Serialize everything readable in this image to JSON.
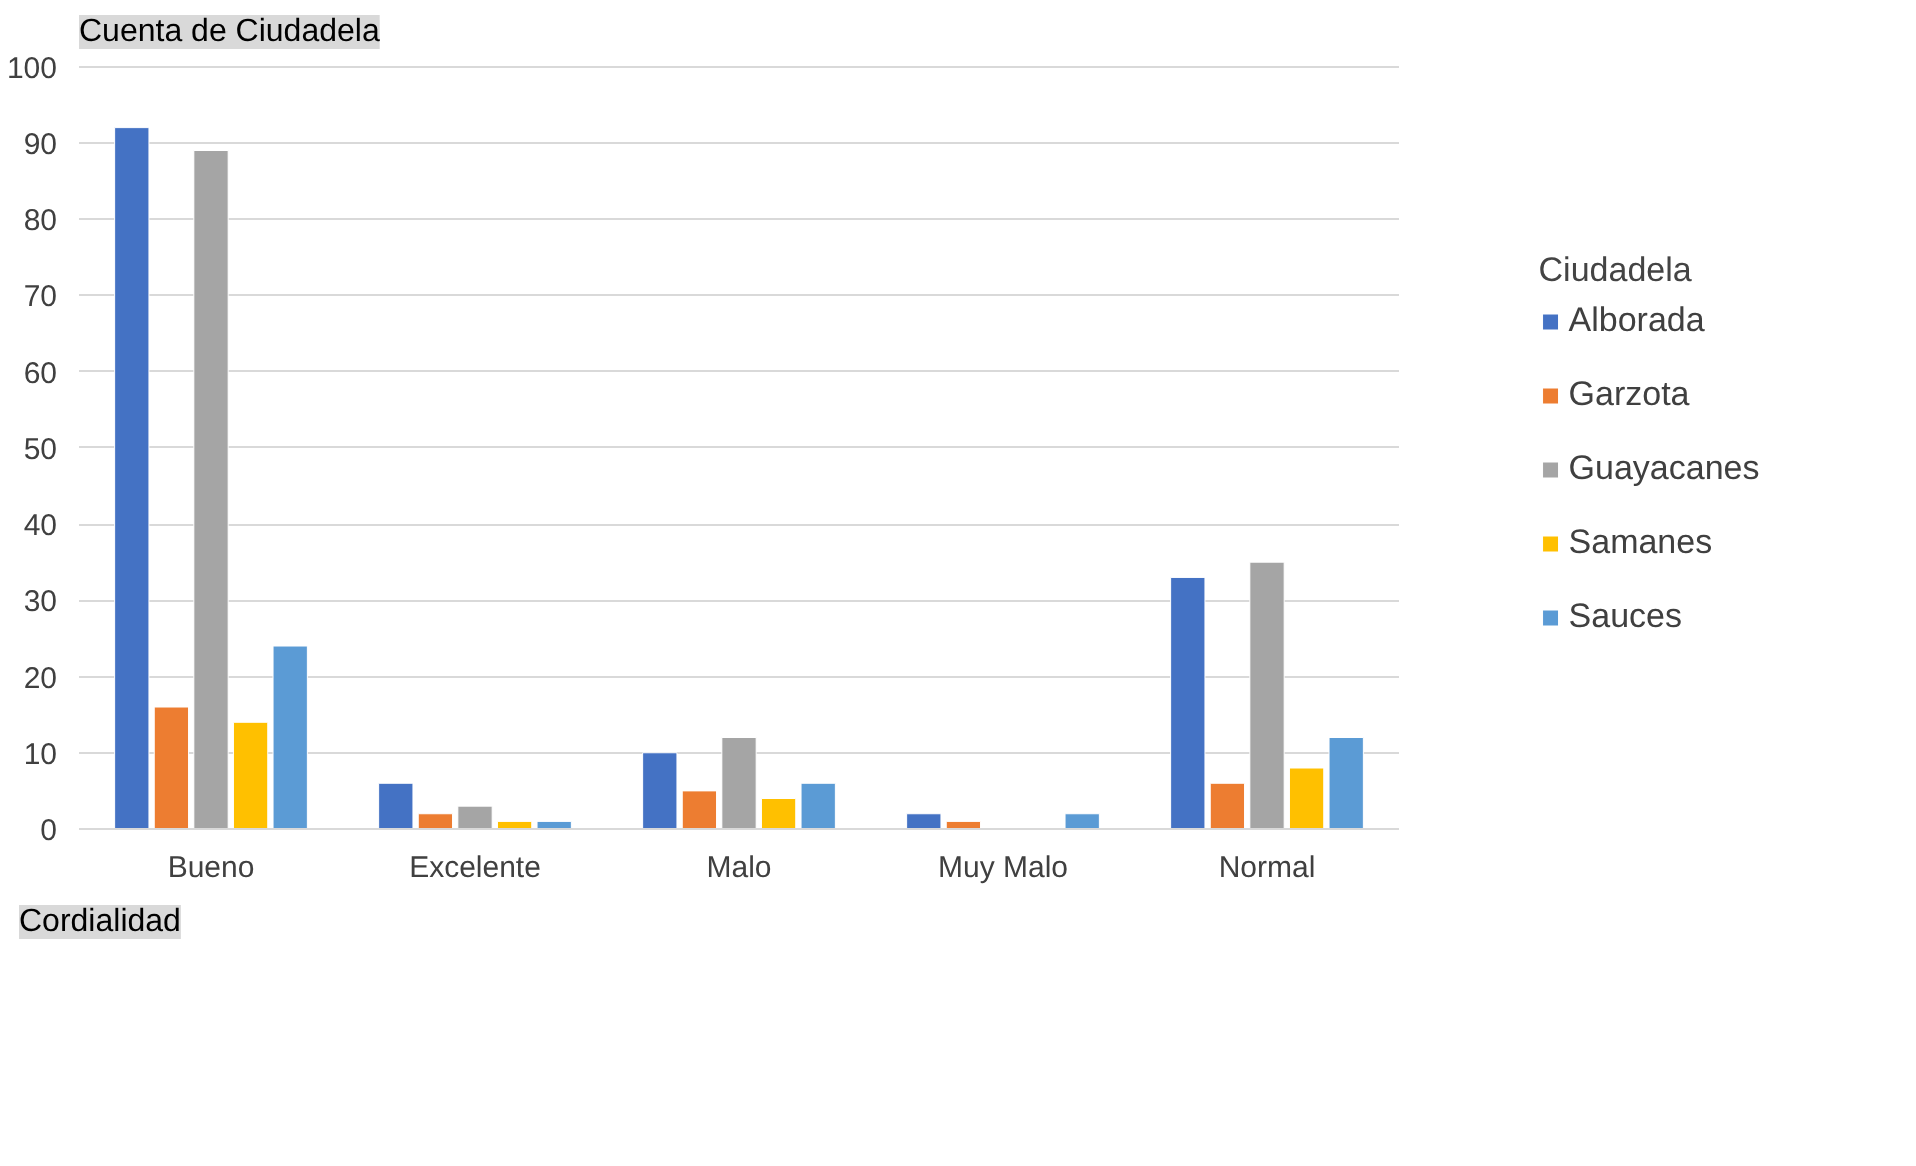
{
  "chart_data": {
    "type": "bar",
    "title": "Cuenta de Ciudadela",
    "xlabel": "Cordialidad",
    "legend_title": "Ciudadela",
    "categories": [
      "Bueno",
      "Excelente",
      "Malo",
      "Muy Malo",
      "Normal"
    ],
    "series": [
      {
        "name": "Alborada",
        "color": "#4472c4",
        "values": [
          92,
          6,
          10,
          2,
          33
        ]
      },
      {
        "name": "Garzota",
        "color": "#ed7d31",
        "values": [
          16,
          2,
          5,
          1,
          6
        ]
      },
      {
        "name": "Guayacanes",
        "color": "#a5a5a5",
        "values": [
          89,
          3,
          12,
          null,
          35
        ]
      },
      {
        "name": "Samanes",
        "color": "#ffc000",
        "values": [
          14,
          1,
          4,
          null,
          8
        ]
      },
      {
        "name": "Sauces",
        "color": "#5b9bd5",
        "values": [
          24,
          1,
          6,
          2,
          12
        ]
      }
    ],
    "ylim": [
      0,
      100
    ],
    "yticks": [
      0,
      10,
      20,
      30,
      40,
      50,
      60,
      70,
      80,
      90,
      100
    ],
    "grid": "y",
    "legend": "right"
  }
}
